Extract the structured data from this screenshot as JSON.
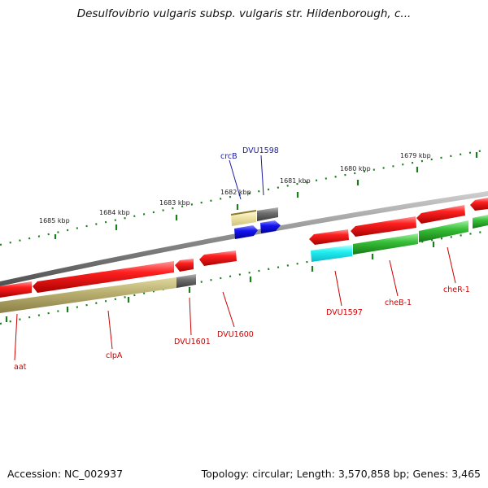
{
  "title": "Desulfovibrio vulgaris subsp. vulgaris str. Hildenborough, c...",
  "footer": {
    "accession": "Accession: NC_002937",
    "summary": "Topology: circular; Length: 3,570,858 bp; Genes: 3,465"
  },
  "ruler": {
    "labels": [
      "1685 kbp",
      "1684 kbp",
      "1683 kbp",
      "1682 kbp",
      "1681 kbp",
      "1680 kbp",
      "1679 kbp"
    ]
  },
  "colors": {
    "backbone": "#8a8a8a",
    "red_gene": "#ee1111",
    "olive_gene": "#b7ad6a",
    "gray_gene": "#6d6d6d",
    "pale_gene": "#ede2a0",
    "blue_gene": "#1010ee",
    "cyan_gene": "#22eeee",
    "green_gene": "#2fae2f",
    "tick_green": "#1a7f1a",
    "label_red": "#cc0000",
    "label_blue": "#1a1aaa"
  },
  "genes": [
    {
      "id": "aat",
      "label": "aat",
      "color": "label_red"
    },
    {
      "id": "clpA",
      "label": "clpA",
      "color": "label_red"
    },
    {
      "id": "DVU1601",
      "label": "DVU1601",
      "color": "label_red"
    },
    {
      "id": "DVU1600",
      "label": "DVU1600",
      "color": "label_red"
    },
    {
      "id": "DVU1597",
      "label": "DVU1597",
      "color": "label_red"
    },
    {
      "id": "cheB-1",
      "label": "cheB-1",
      "color": "label_red"
    },
    {
      "id": "cheR-1",
      "label": "cheR-1",
      "color": "label_red"
    },
    {
      "id": "crcB",
      "label": "crcB",
      "color": "label_blue"
    },
    {
      "id": "DVU1598",
      "label": "DVU1598",
      "color": "label_blue"
    }
  ]
}
